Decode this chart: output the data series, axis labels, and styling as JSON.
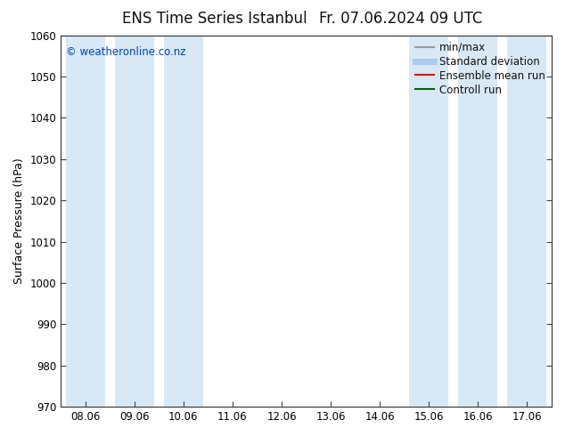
{
  "title_left": "ENS Time Series Istanbul",
  "title_right": "Fr. 07.06.2024 09 UTC",
  "ylabel": "Surface Pressure (hPa)",
  "ylim": [
    970,
    1060
  ],
  "yticks": [
    970,
    980,
    990,
    1000,
    1010,
    1020,
    1030,
    1040,
    1050,
    1060
  ],
  "xtick_labels": [
    "08.06",
    "09.06",
    "10.06",
    "11.06",
    "12.06",
    "13.06",
    "14.06",
    "15.06",
    "16.06",
    "17.06"
  ],
  "band_color": "#d8e8f5",
  "background_color": "#ffffff",
  "watermark_text": "© weatheronline.co.nz",
  "watermark_color": "#0044bb",
  "legend_items": [
    {
      "label": "min/max",
      "color": "#999999",
      "lw": 1.5,
      "style": "solid"
    },
    {
      "label": "Standard deviation",
      "color": "#aaccee",
      "lw": 5,
      "style": "solid"
    },
    {
      "label": "Ensemble mean run",
      "color": "#dd0000",
      "lw": 1.5,
      "style": "solid"
    },
    {
      "label": "Controll run",
      "color": "#006600",
      "lw": 1.5,
      "style": "solid"
    }
  ],
  "title_fontsize": 12,
  "ylabel_fontsize": 9,
  "tick_fontsize": 8.5,
  "legend_fontsize": 8.5,
  "shaded_x_indices": [
    0,
    1,
    2,
    7,
    8,
    9
  ]
}
